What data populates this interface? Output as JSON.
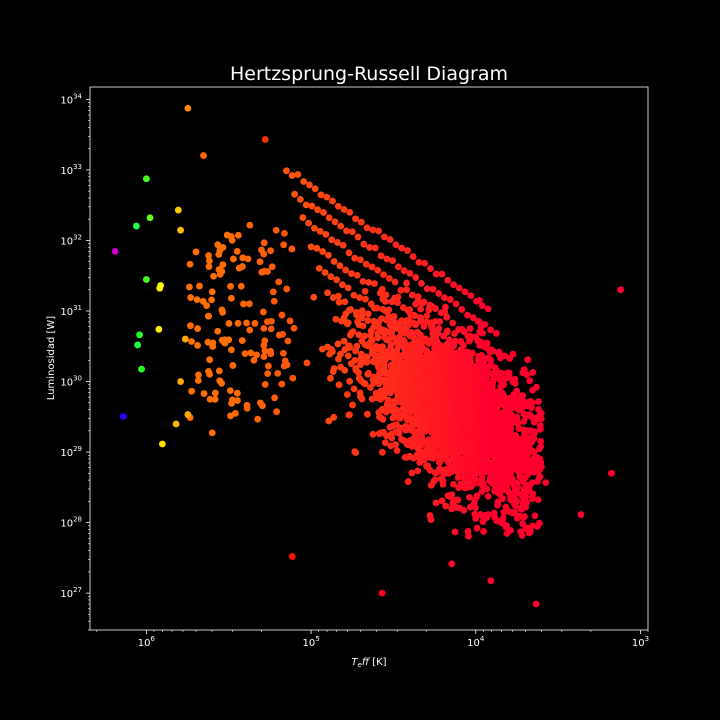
{
  "chart_data": {
    "type": "scatter",
    "title": "Hertzsprung-Russell Diagram",
    "xlabel": "T_eff [K]",
    "ylabel": "Luminosidad [W]",
    "x_scale": "log",
    "y_scale": "log",
    "x_inverted": true,
    "xlim": [
      2200000,
      900
    ],
    "ylim": [
      3e+26,
      1.5e+34
    ],
    "grid": false,
    "background": "#000000",
    "x_ticks": [
      {
        "value": 1000000,
        "label": "10",
        "exp": "6"
      },
      {
        "value": 100000,
        "label": "10",
        "exp": "5"
      },
      {
        "value": 10000,
        "label": "10",
        "exp": "4"
      },
      {
        "value": 1000,
        "label": "10",
        "exp": "3"
      }
    ],
    "y_ticks": [
      {
        "value": 1e+27,
        "label": "10",
        "exp": "27"
      },
      {
        "value": 1e+28,
        "label": "10",
        "exp": "28"
      },
      {
        "value": 1e+29,
        "label": "10",
        "exp": "29"
      },
      {
        "value": 1e+30,
        "label": "10",
        "exp": "30"
      },
      {
        "value": 1e+31,
        "label": "10",
        "exp": "31"
      },
      {
        "value": 1e+32,
        "label": "10",
        "exp": "32"
      },
      {
        "value": 1e+33,
        "label": "10",
        "exp": "33"
      },
      {
        "value": 1e+34,
        "label": "10",
        "exp": "34"
      }
    ],
    "points": [
      {
        "x": 1550000,
        "y": 7e+31,
        "color": "#cc00cc"
      },
      {
        "x": 1380000,
        "y": 3.2e+29,
        "color": "#2a00ff"
      },
      {
        "x": 1150000,
        "y": 1.6e+32,
        "color": "#22ff44"
      },
      {
        "x": 1000000,
        "y": 7.5e+32,
        "color": "#44ff22"
      },
      {
        "x": 950000,
        "y": 2.1e+32,
        "color": "#66ff22"
      },
      {
        "x": 1000000,
        "y": 2.8e+31,
        "color": "#44ff22"
      },
      {
        "x": 1100000,
        "y": 4.6e+30,
        "color": "#22ff22"
      },
      {
        "x": 1130000,
        "y": 3.3e+30,
        "color": "#22ff44"
      },
      {
        "x": 1070000,
        "y": 1.5e+30,
        "color": "#22ff22"
      },
      {
        "x": 830000,
        "y": 2.1e+31,
        "color": "#ffff00"
      },
      {
        "x": 820000,
        "y": 2.3e+31,
        "color": "#ffff00"
      },
      {
        "x": 840000,
        "y": 5.5e+30,
        "color": "#ffee00"
      },
      {
        "x": 800000,
        "y": 1.3e+29,
        "color": "#ffdd00"
      },
      {
        "x": 640000,
        "y": 2.7e+32,
        "color": "#ffcc00"
      },
      {
        "x": 620000,
        "y": 1.4e+32,
        "color": "#ffbb00"
      },
      {
        "x": 620000,
        "y": 1e+30,
        "color": "#ffaa00"
      },
      {
        "x": 660000,
        "y": 2.5e+29,
        "color": "#ffbb00"
      },
      {
        "x": 580000,
        "y": 4e+30,
        "color": "#ffaa00"
      },
      {
        "x": 560000,
        "y": 3.4e+29,
        "color": "#ffaa00"
      },
      {
        "x": 560000,
        "y": 7.5e+33,
        "color": "#ff8800"
      },
      {
        "x": 450000,
        "y": 1.6e+33,
        "color": "#ff6600"
      },
      {
        "x": 190000,
        "y": 2.7e+33,
        "color": "#ff3300"
      },
      {
        "x": 1320,
        "y": 2e+31,
        "color": "#ff0033"
      },
      {
        "x": 1500,
        "y": 5e+28,
        "color": "#ff0033"
      },
      {
        "x": 2300,
        "y": 1.3e+28,
        "color": "#ff0033"
      },
      {
        "x": 4300,
        "y": 7e+26,
        "color": "#ff0033"
      },
      {
        "x": 37000,
        "y": 1e+27,
        "color": "#ff0022"
      },
      {
        "x": 8100,
        "y": 1.5e+27,
        "color": "#ff0033"
      },
      {
        "x": 130000,
        "y": 3.3e+27,
        "color": "#ff1100"
      },
      {
        "x": 14000,
        "y": 2.6e+27,
        "color": "#ff0033"
      }
    ]
  }
}
